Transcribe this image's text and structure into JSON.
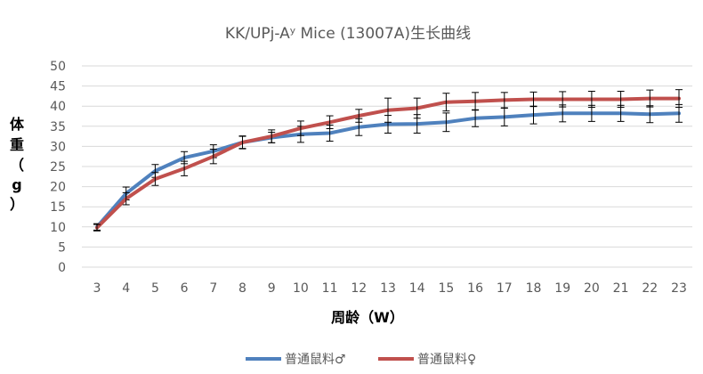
{
  "chart_data": {
    "type": "line",
    "title": "KK/UPj-Aʸ Mice (13007A)生长曲线",
    "xlabel": "周龄（W）",
    "ylabel": "体重（g）",
    "ylabel_chars": [
      "体",
      "重",
      "（",
      "g",
      "）"
    ],
    "categories": [
      "3",
      "4",
      "5",
      "6",
      "7",
      "8",
      "9",
      "10",
      "11",
      "12",
      "13",
      "14",
      "15",
      "16",
      "17",
      "18",
      "19",
      "20",
      "21",
      "22",
      "23"
    ],
    "ylim": [
      0,
      50
    ],
    "yticks": [
      0,
      5,
      10,
      15,
      20,
      25,
      30,
      35,
      40,
      45,
      50
    ],
    "grid": true,
    "legend_position": "bottom",
    "series": [
      {
        "name": "普通鼠料♂",
        "color": "#4F81BD",
        "values": [
          10.0,
          18.3,
          23.9,
          27.2,
          28.8,
          31.0,
          32.2,
          33.0,
          33.3,
          34.8,
          35.5,
          35.6,
          36.0,
          37.0,
          37.3,
          37.8,
          38.2,
          38.2,
          38.2,
          38.0,
          38.2
        ],
        "errors": [
          0.8,
          1.6,
          1.6,
          1.5,
          1.6,
          1.5,
          1.3,
          2.0,
          2.0,
          2.1,
          2.2,
          2.3,
          2.3,
          2.1,
          2.2,
          2.2,
          2.1,
          2.0,
          2.0,
          2.1,
          2.2
        ]
      },
      {
        "name": "普通鼠料♀",
        "color": "#C0504D",
        "values": [
          9.8,
          17.0,
          21.9,
          24.5,
          27.5,
          31.0,
          32.5,
          34.5,
          36.0,
          37.6,
          39.0,
          39.5,
          41.0,
          41.2,
          41.5,
          41.7,
          41.7,
          41.7,
          41.7,
          41.9,
          41.9
        ],
        "errors": [
          0.8,
          1.5,
          1.6,
          1.8,
          1.8,
          1.6,
          1.6,
          1.8,
          1.6,
          1.6,
          3.0,
          2.5,
          2.2,
          2.2,
          1.9,
          1.8,
          1.9,
          2.0,
          2.0,
          2.1,
          2.2
        ]
      }
    ]
  }
}
